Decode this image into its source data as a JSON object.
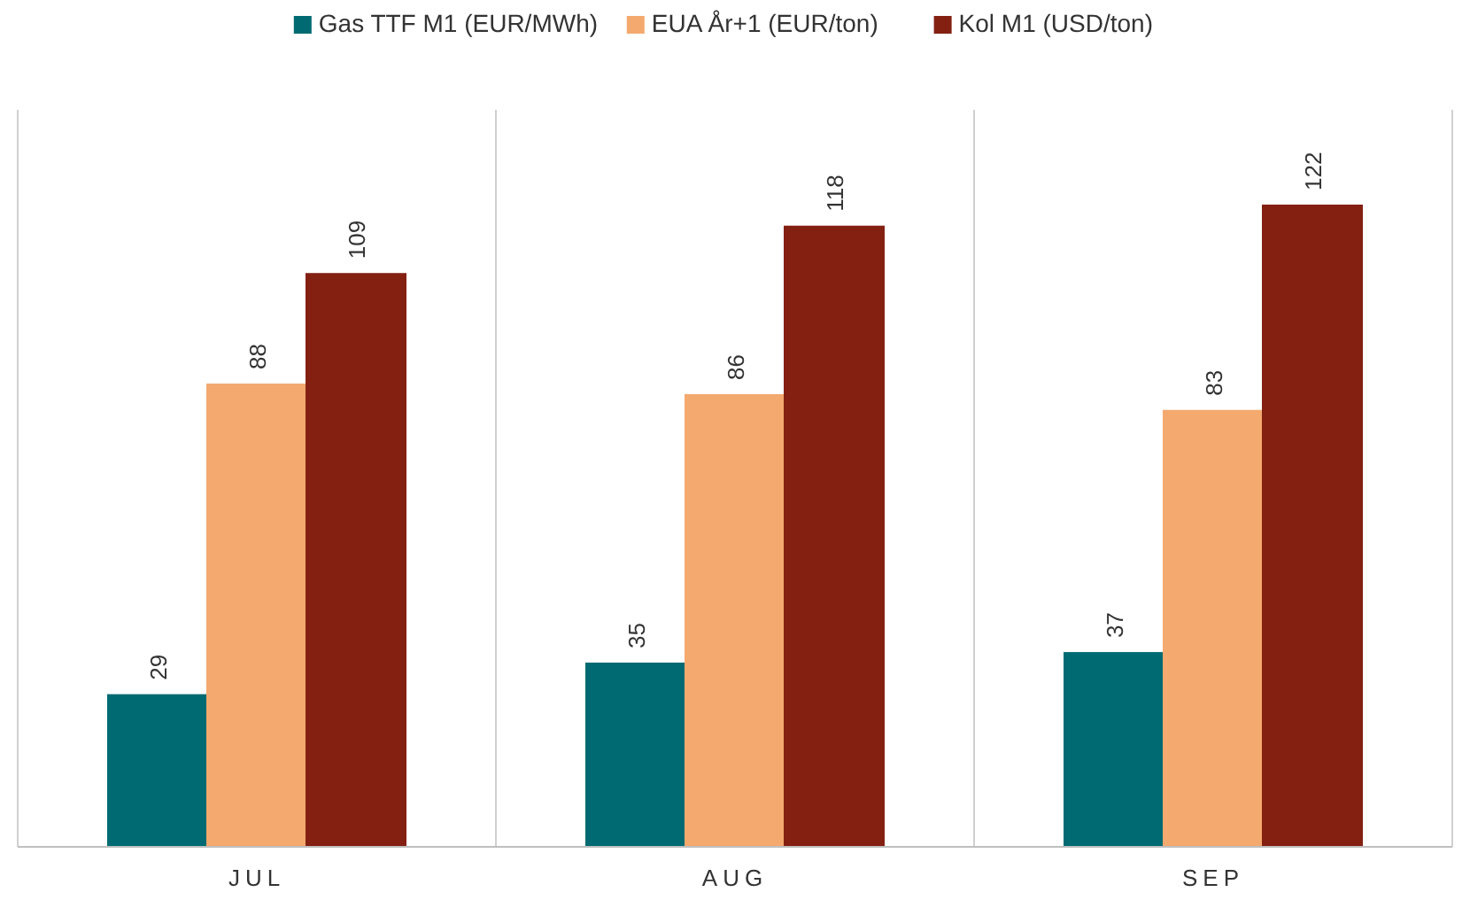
{
  "chart_data": {
    "type": "bar",
    "categories": [
      "JUL",
      "AUG",
      "SEP"
    ],
    "series": [
      {
        "name": "Gas TTF M1 (EUR/MWh)",
        "color": "#006a72",
        "values": [
          29,
          35,
          37
        ]
      },
      {
        "name": "EUA År+1 (EUR/ton)",
        "color": "#f4a96f",
        "values": [
          88,
          86,
          83
        ]
      },
      {
        "name": "Kol M1 (USD/ton)",
        "color": "#832012",
        "values": [
          109,
          118,
          122
        ]
      }
    ],
    "ylim": [
      0,
      140
    ],
    "tick_labels": "x",
    "data_labels": true,
    "legend": "top"
  }
}
